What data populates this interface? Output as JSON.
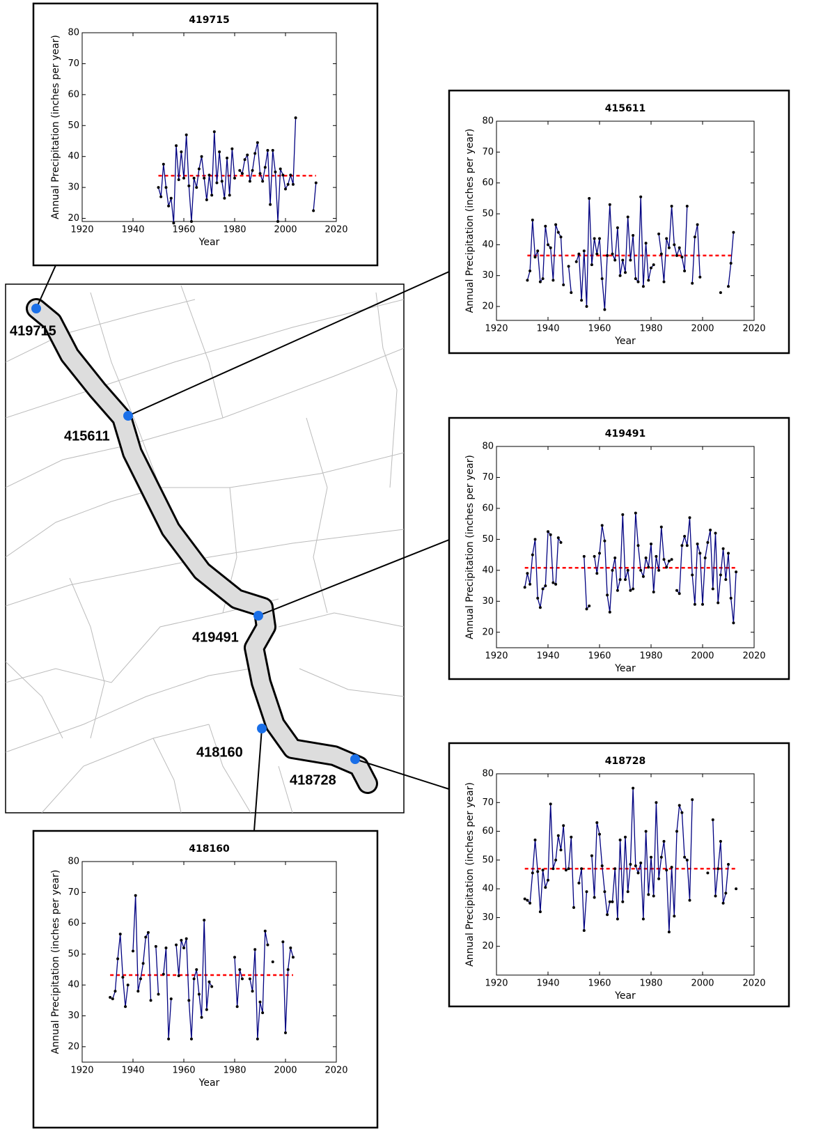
{
  "map": {
    "stations": [
      "419715",
      "415611",
      "419491",
      "418160",
      "418728"
    ]
  },
  "chart_data": [
    {
      "type": "line",
      "title": "419715",
      "xlabel": "Year",
      "ylabel": "Annual Precipitation (inches per year)",
      "color": "#000080",
      "x": [
        1950,
        1951,
        1952,
        1953,
        1954,
        1955,
        1956,
        1957,
        1958,
        1959,
        1960,
        1961,
        1962,
        1963,
        1964,
        1965,
        1966,
        1967,
        1968,
        1969,
        1970,
        1971,
        1972,
        1973,
        1974,
        1975,
        1976,
        1977,
        1978,
        1979,
        1980,
        1981,
        1982,
        1983,
        1984,
        1985,
        1986,
        1987,
        1988,
        1989,
        1990,
        1991,
        1992,
        1993,
        1994,
        1995,
        1996,
        1997,
        1998,
        1999,
        2000,
        2001,
        2002,
        2003,
        2004,
        2005,
        2006,
        2007,
        2008,
        2009,
        2010,
        2011,
        2012
      ],
      "values": [
        30,
        27,
        37.5,
        30,
        24,
        26.5,
        18.5,
        43.5,
        32.5,
        41.5,
        33,
        47,
        30.5,
        19,
        33,
        30,
        36,
        40,
        33,
        26,
        34,
        27.5,
        48,
        31.5,
        41.5,
        32,
        26.5,
        39.5,
        27.5,
        42.5,
        33,
        null,
        35.5,
        34.5,
        39,
        40.5,
        32,
        35.5,
        41,
        44.5,
        34.5,
        32,
        36.5,
        42,
        24.5,
        42,
        35,
        19,
        36,
        34,
        29.5,
        31,
        34,
        31,
        52.5,
        null,
        null,
        null,
        null,
        null,
        null,
        22.5,
        31.5
      ],
      "mean_line": {
        "y": 33.8,
        "x": [
          1950,
          2012
        ],
        "color": "#ff0000"
      },
      "xlim": [
        1920,
        2020
      ],
      "ylim": [
        19,
        80
      ],
      "xticks": [
        1920,
        1940,
        1960,
        1980,
        2000,
        2020
      ],
      "yticks": [
        20,
        30,
        40,
        50,
        60,
        70,
        80
      ]
    },
    {
      "type": "line",
      "title": "415611",
      "xlabel": "Year",
      "ylabel": "Annual Precipitation (inches per year)",
      "color": "#000080",
      "x": [
        1932,
        1933,
        1934,
        1935,
        1936,
        1937,
        1938,
        1939,
        1940,
        1941,
        1942,
        1943,
        1944,
        1945,
        1946,
        1947,
        1948,
        1949,
        1950,
        1951,
        1952,
        1953,
        1954,
        1955,
        1956,
        1957,
        1958,
        1959,
        1960,
        1961,
        1962,
        1963,
        1964,
        1965,
        1966,
        1967,
        1968,
        1969,
        1970,
        1971,
        1972,
        1973,
        1974,
        1975,
        1976,
        1977,
        1978,
        1979,
        1980,
        1981,
        1982,
        1983,
        1984,
        1985,
        1986,
        1987,
        1988,
        1989,
        1990,
        1991,
        1992,
        1993,
        1994,
        1995,
        1996,
        1997,
        1998,
        1999,
        2000,
        2001,
        2002,
        2003,
        2004,
        2005,
        2006,
        2007,
        2008,
        2009,
        2010,
        2011,
        2012
      ],
      "values": [
        28.5,
        31.5,
        48,
        36,
        38,
        28,
        29,
        46,
        40,
        39,
        28.5,
        46.5,
        44,
        42.5,
        27,
        null,
        33,
        24.5,
        null,
        34.5,
        37,
        22,
        38,
        20,
        55,
        33.5,
        42,
        37,
        42,
        29,
        19,
        36.5,
        53,
        37,
        35,
        45.5,
        30,
        35,
        31,
        49,
        35,
        43,
        29,
        28,
        55.5,
        26.5,
        40.5,
        28.5,
        32.5,
        33.5,
        null,
        43.5,
        37,
        28,
        42,
        39,
        52.5,
        40,
        36.5,
        39,
        36,
        31.5,
        52.5,
        null,
        27.5,
        42.5,
        46.5,
        29.5,
        null,
        null,
        null,
        null,
        null,
        null,
        null,
        24.5,
        null,
        null,
        26.5,
        34,
        44
      ],
      "mean_line": {
        "y": 36.5,
        "x": [
          1932,
          2012
        ],
        "color": "#ff0000"
      },
      "xlim": [
        1920,
        2020
      ],
      "ylim": [
        15.5,
        80
      ],
      "xticks": [
        1920,
        1940,
        1960,
        1980,
        2000,
        2020
      ],
      "yticks": [
        20,
        30,
        40,
        50,
        60,
        70,
        80
      ]
    },
    {
      "type": "line",
      "title": "419491",
      "xlabel": "Year",
      "ylabel": "Annual Precipitation (inches per year)",
      "color": "#000080",
      "x": [
        1931,
        1932,
        1933,
        1934,
        1935,
        1936,
        1937,
        1938,
        1939,
        1940,
        1941,
        1942,
        1943,
        1944,
        1945,
        1946,
        1947,
        1948,
        1949,
        1950,
        1951,
        1952,
        1953,
        1954,
        1955,
        1956,
        1957,
        1958,
        1959,
        1960,
        1961,
        1962,
        1963,
        1964,
        1965,
        1966,
        1967,
        1968,
        1969,
        1970,
        1971,
        1972,
        1973,
        1974,
        1975,
        1976,
        1977,
        1978,
        1979,
        1980,
        1981,
        1982,
        1983,
        1984,
        1985,
        1986,
        1987,
        1988,
        1989,
        1990,
        1991,
        1992,
        1993,
        1994,
        1995,
        1996,
        1997,
        1998,
        1999,
        2000,
        2001,
        2002,
        2003,
        2004,
        2005,
        2006,
        2007,
        2008,
        2009,
        2010,
        2011,
        2012,
        2013
      ],
      "values": [
        34.5,
        39,
        35.5,
        45,
        50,
        31,
        28,
        34,
        35,
        52.5,
        51.5,
        36,
        35.5,
        50.5,
        49,
        null,
        null,
        null,
        null,
        null,
        null,
        null,
        null,
        44.5,
        27.5,
        28.5,
        null,
        44.5,
        39,
        45.5,
        54.5,
        49.5,
        32,
        26.5,
        40,
        44,
        33.5,
        37,
        58,
        37,
        40,
        33.5,
        34,
        58.5,
        48,
        40,
        38,
        44,
        41,
        48.5,
        33,
        44.5,
        40,
        54,
        43.5,
        41,
        43,
        43.5,
        null,
        33.5,
        32.5,
        48,
        51,
        48,
        57,
        38.5,
        29,
        48.5,
        45.5,
        29,
        44,
        49,
        53,
        34,
        52,
        29.5,
        38.5,
        47,
        37,
        45.5,
        31,
        23,
        39.5
      ],
      "mean_line": {
        "y": 40.8,
        "x": [
          1931,
          2013
        ],
        "color": "#ff0000"
      },
      "xlim": [
        1920,
        2020
      ],
      "ylim": [
        15,
        80
      ],
      "xticks": [
        1920,
        1940,
        1960,
        1980,
        2000,
        2020
      ],
      "yticks": [
        20,
        30,
        40,
        50,
        60,
        70,
        80
      ]
    },
    {
      "type": "line",
      "title": "418728",
      "xlabel": "Year",
      "ylabel": "Annual Precipitation (inches per year)",
      "color": "#000080",
      "x": [
        1931,
        1932,
        1933,
        1934,
        1935,
        1936,
        1937,
        1938,
        1939,
        1940,
        1941,
        1942,
        1943,
        1944,
        1945,
        1946,
        1947,
        1948,
        1949,
        1950,
        1951,
        1952,
        1953,
        1954,
        1955,
        1956,
        1957,
        1958,
        1959,
        1960,
        1961,
        1962,
        1963,
        1964,
        1965,
        1966,
        1967,
        1968,
        1969,
        1970,
        1971,
        1972,
        1973,
        1974,
        1975,
        1976,
        1977,
        1978,
        1979,
        1980,
        1981,
        1982,
        1983,
        1984,
        1985,
        1986,
        1987,
        1988,
        1989,
        1990,
        1991,
        1992,
        1993,
        1994,
        1995,
        1996,
        1997,
        1998,
        1999,
        2000,
        2001,
        2002,
        2003,
        2004,
        2005,
        2006,
        2007,
        2008,
        2009,
        2010,
        2011,
        2012,
        2013
      ],
      "values": [
        36.5,
        36,
        35,
        45.5,
        57,
        46,
        32,
        46.5,
        40.5,
        43,
        69.5,
        47,
        50,
        58.5,
        53.5,
        62,
        46.5,
        47,
        58,
        33.5,
        null,
        42,
        47,
        25.5,
        39,
        null,
        51.5,
        37,
        63,
        59,
        48,
        39,
        31,
        35.5,
        35.5,
        47,
        29.5,
        57,
        35.5,
        58,
        39,
        48.5,
        75,
        48,
        45.5,
        49,
        29.5,
        60,
        38,
        51,
        37.5,
        70,
        43.5,
        51,
        56.5,
        46.5,
        25,
        47.5,
        30.5,
        60,
        69,
        66.5,
        51,
        50,
        36,
        71,
        null,
        null,
        null,
        null,
        null,
        45.5,
        null,
        64,
        37.5,
        47,
        56.5,
        35,
        38.5,
        48.5,
        null,
        null,
        40
      ],
      "mean_line": {
        "y": 47,
        "x": [
          1931,
          2013
        ],
        "color": "#ff0000"
      },
      "xlim": [
        1920,
        2020
      ],
      "ylim": [
        10,
        80
      ],
      "xticks": [
        1920,
        1940,
        1960,
        1980,
        2000,
        2020
      ],
      "yticks": [
        20,
        30,
        40,
        50,
        60,
        70,
        80
      ]
    },
    {
      "type": "line",
      "title": "418160",
      "xlabel": "Year",
      "ylabel": "Annual Precipitation (inches per year)",
      "color": "#000080",
      "x": [
        1931,
        1932,
        1933,
        1934,
        1935,
        1936,
        1937,
        1938,
        1939,
        1940,
        1941,
        1942,
        1943,
        1944,
        1945,
        1946,
        1947,
        1948,
        1949,
        1950,
        1951,
        1952,
        1953,
        1954,
        1955,
        1956,
        1957,
        1958,
        1959,
        1960,
        1961,
        1962,
        1963,
        1964,
        1965,
        1966,
        1967,
        1968,
        1969,
        1970,
        1971,
        1972,
        1973,
        1974,
        1975,
        1976,
        1977,
        1978,
        1979,
        1980,
        1981,
        1982,
        1983,
        1984,
        1985,
        1986,
        1987,
        1988,
        1989,
        1990,
        1991,
        1992,
        1993,
        1994,
        1995,
        1996,
        1997,
        1998,
        1999,
        2000,
        2001,
        2002,
        2003
      ],
      "values": [
        36,
        35.5,
        38,
        48.5,
        56.5,
        42.5,
        33,
        40,
        null,
        51,
        69,
        38,
        42,
        47,
        55.5,
        57,
        35,
        null,
        52.5,
        37,
        null,
        43.5,
        52,
        22.5,
        35.5,
        null,
        53,
        43,
        54.5,
        52,
        55,
        35,
        22.5,
        42,
        45,
        37,
        29.5,
        61,
        32,
        41,
        39.5,
        null,
        null,
        null,
        null,
        null,
        null,
        null,
        null,
        49,
        33,
        45,
        42,
        null,
        null,
        42,
        38,
        51.5,
        22.5,
        34.5,
        31,
        57.5,
        53,
        null,
        47.5,
        null,
        null,
        null,
        54,
        24.5,
        45,
        52,
        49
      ],
      "mean_line": {
        "y": 43.2,
        "x": [
          1931,
          2003
        ],
        "color": "#ff0000"
      },
      "xlim": [
        1920,
        2020
      ],
      "ylim": [
        15,
        80
      ],
      "xticks": [
        1920,
        1940,
        1960,
        1980,
        2000,
        2020
      ],
      "yticks": [
        20,
        30,
        40,
        50,
        60,
        70,
        80
      ]
    }
  ]
}
